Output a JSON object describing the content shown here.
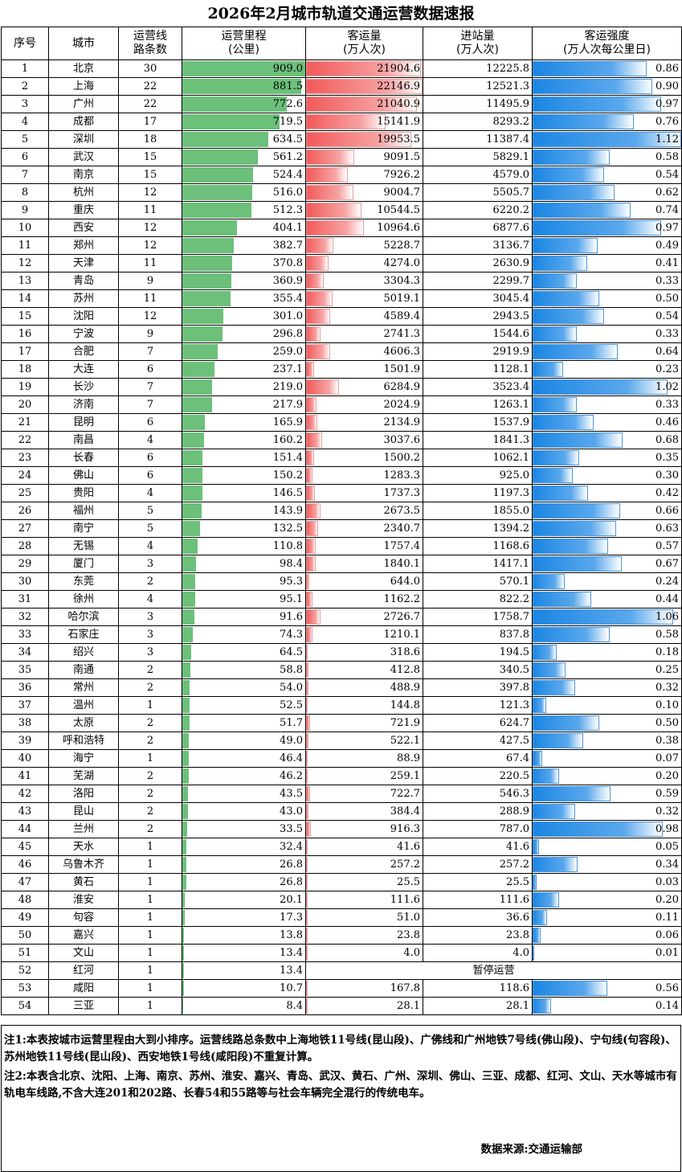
{
  "title": "2026年2月城市轨道交通运营数据速报",
  "headers": {
    "rank": [
      "序号"
    ],
    "city": [
      "城市"
    ],
    "lines": [
      "运营线",
      "路条数"
    ],
    "mileage": [
      "运营里程",
      "(公里)"
    ],
    "ridership": [
      "客运量",
      "(万人次)"
    ],
    "entries": [
      "进站量",
      "(万人次)"
    ],
    "intensity": [
      "客运强度",
      "(万人次每公里日)"
    ]
  },
  "scale": {
    "mileage_max": 909.0,
    "ridership_max": 22146.9,
    "intensity_max": 1.12
  },
  "colors": {
    "mileage_bar": "#6cc07a",
    "ridership_bar": "#f25a5a",
    "intensity_bar": "#1b86e3"
  },
  "rows": [
    {
      "rank": "1",
      "city": "北京",
      "lines": "30",
      "mileage": "909.0",
      "ridership": "21904.6",
      "entries": "12225.8",
      "intensity": "0.86"
    },
    {
      "rank": "2",
      "city": "上海",
      "lines": "22",
      "mileage": "881.5",
      "ridership": "22146.9",
      "entries": "12521.3",
      "intensity": "0.90"
    },
    {
      "rank": "3",
      "city": "广州",
      "lines": "22",
      "mileage": "772.6",
      "ridership": "21040.9",
      "entries": "11495.9",
      "intensity": "0.97"
    },
    {
      "rank": "4",
      "city": "成都",
      "lines": "17",
      "mileage": "719.5",
      "ridership": "15141.9",
      "entries": "8293.2",
      "intensity": "0.76"
    },
    {
      "rank": "5",
      "city": "深圳",
      "lines": "18",
      "mileage": "634.5",
      "ridership": "19953.5",
      "entries": "11387.4",
      "intensity": "1.12"
    },
    {
      "rank": "6",
      "city": "武汉",
      "lines": "15",
      "mileage": "561.2",
      "ridership": "9091.5",
      "entries": "5829.1",
      "intensity": "0.58"
    },
    {
      "rank": "7",
      "city": "南京",
      "lines": "15",
      "mileage": "524.4",
      "ridership": "7926.2",
      "entries": "4579.0",
      "intensity": "0.54"
    },
    {
      "rank": "8",
      "city": "杭州",
      "lines": "12",
      "mileage": "516.0",
      "ridership": "9004.7",
      "entries": "5505.7",
      "intensity": "0.62"
    },
    {
      "rank": "9",
      "city": "重庆",
      "lines": "11",
      "mileage": "512.3",
      "ridership": "10544.5",
      "entries": "6220.2",
      "intensity": "0.74"
    },
    {
      "rank": "10",
      "city": "西安",
      "lines": "12",
      "mileage": "404.1",
      "ridership": "10964.6",
      "entries": "6877.6",
      "intensity": "0.97"
    },
    {
      "rank": "11",
      "city": "郑州",
      "lines": "12",
      "mileage": "382.7",
      "ridership": "5228.7",
      "entries": "3136.7",
      "intensity": "0.49"
    },
    {
      "rank": "12",
      "city": "天津",
      "lines": "11",
      "mileage": "370.8",
      "ridership": "4274.0",
      "entries": "2630.9",
      "intensity": "0.41"
    },
    {
      "rank": "13",
      "city": "青岛",
      "lines": "9",
      "mileage": "360.9",
      "ridership": "3304.3",
      "entries": "2299.7",
      "intensity": "0.33"
    },
    {
      "rank": "14",
      "city": "苏州",
      "lines": "11",
      "mileage": "355.4",
      "ridership": "5019.1",
      "entries": "3045.4",
      "intensity": "0.50"
    },
    {
      "rank": "15",
      "city": "沈阳",
      "lines": "12",
      "mileage": "301.0",
      "ridership": "4589.4",
      "entries": "2943.5",
      "intensity": "0.54"
    },
    {
      "rank": "16",
      "city": "宁波",
      "lines": "9",
      "mileage": "296.8",
      "ridership": "2741.3",
      "entries": "1544.6",
      "intensity": "0.33"
    },
    {
      "rank": "17",
      "city": "合肥",
      "lines": "7",
      "mileage": "259.0",
      "ridership": "4606.3",
      "entries": "2919.9",
      "intensity": "0.64"
    },
    {
      "rank": "18",
      "city": "大连",
      "lines": "6",
      "mileage": "237.1",
      "ridership": "1501.9",
      "entries": "1128.1",
      "intensity": "0.23"
    },
    {
      "rank": "19",
      "city": "长沙",
      "lines": "7",
      "mileage": "219.0",
      "ridership": "6284.9",
      "entries": "3523.4",
      "intensity": "1.02"
    },
    {
      "rank": "20",
      "city": "济南",
      "lines": "7",
      "mileage": "217.9",
      "ridership": "2024.9",
      "entries": "1263.1",
      "intensity": "0.33"
    },
    {
      "rank": "21",
      "city": "昆明",
      "lines": "6",
      "mileage": "165.9",
      "ridership": "2134.9",
      "entries": "1537.9",
      "intensity": "0.46"
    },
    {
      "rank": "22",
      "city": "南昌",
      "lines": "4",
      "mileage": "160.2",
      "ridership": "3037.6",
      "entries": "1841.3",
      "intensity": "0.68"
    },
    {
      "rank": "23",
      "city": "长春",
      "lines": "6",
      "mileage": "151.4",
      "ridership": "1500.2",
      "entries": "1062.1",
      "intensity": "0.35"
    },
    {
      "rank": "24",
      "city": "佛山",
      "lines": "6",
      "mileage": "150.2",
      "ridership": "1283.3",
      "entries": "925.0",
      "intensity": "0.30"
    },
    {
      "rank": "25",
      "city": "贵阳",
      "lines": "4",
      "mileage": "146.5",
      "ridership": "1737.3",
      "entries": "1197.3",
      "intensity": "0.42"
    },
    {
      "rank": "26",
      "city": "福州",
      "lines": "5",
      "mileage": "143.9",
      "ridership": "2673.5",
      "entries": "1855.0",
      "intensity": "0.66"
    },
    {
      "rank": "27",
      "city": "南宁",
      "lines": "5",
      "mileage": "132.5",
      "ridership": "2340.7",
      "entries": "1394.2",
      "intensity": "0.63"
    },
    {
      "rank": "28",
      "city": "无锡",
      "lines": "4",
      "mileage": "110.8",
      "ridership": "1757.4",
      "entries": "1168.6",
      "intensity": "0.57"
    },
    {
      "rank": "29",
      "city": "厦门",
      "lines": "3",
      "mileage": "98.4",
      "ridership": "1840.1",
      "entries": "1417.1",
      "intensity": "0.67"
    },
    {
      "rank": "30",
      "city": "东莞",
      "lines": "2",
      "mileage": "95.3",
      "ridership": "644.0",
      "entries": "570.1",
      "intensity": "0.24"
    },
    {
      "rank": "31",
      "city": "徐州",
      "lines": "4",
      "mileage": "95.1",
      "ridership": "1162.2",
      "entries": "822.2",
      "intensity": "0.44"
    },
    {
      "rank": "32",
      "city": "哈尔滨",
      "lines": "3",
      "mileage": "91.6",
      "ridership": "2726.7",
      "entries": "1758.7",
      "intensity": "1.06"
    },
    {
      "rank": "33",
      "city": "石家庄",
      "lines": "3",
      "mileage": "74.3",
      "ridership": "1210.1",
      "entries": "837.8",
      "intensity": "0.58"
    },
    {
      "rank": "34",
      "city": "绍兴",
      "lines": "3",
      "mileage": "64.5",
      "ridership": "318.6",
      "entries": "194.5",
      "intensity": "0.18"
    },
    {
      "rank": "35",
      "city": "南通",
      "lines": "2",
      "mileage": "58.8",
      "ridership": "412.8",
      "entries": "340.5",
      "intensity": "0.25"
    },
    {
      "rank": "36",
      "city": "常州",
      "lines": "2",
      "mileage": "54.0",
      "ridership": "488.9",
      "entries": "397.8",
      "intensity": "0.32"
    },
    {
      "rank": "37",
      "city": "温州",
      "lines": "1",
      "mileage": "52.5",
      "ridership": "144.8",
      "entries": "121.3",
      "intensity": "0.10"
    },
    {
      "rank": "38",
      "city": "太原",
      "lines": "2",
      "mileage": "51.7",
      "ridership": "721.9",
      "entries": "624.7",
      "intensity": "0.50"
    },
    {
      "rank": "39",
      "city": "呼和浩特",
      "lines": "2",
      "mileage": "49.0",
      "ridership": "522.1",
      "entries": "427.5",
      "intensity": "0.38"
    },
    {
      "rank": "40",
      "city": "海宁",
      "lines": "1",
      "mileage": "46.4",
      "ridership": "88.9",
      "entries": "67.4",
      "intensity": "0.07"
    },
    {
      "rank": "41",
      "city": "芜湖",
      "lines": "2",
      "mileage": "46.2",
      "ridership": "259.1",
      "entries": "220.5",
      "intensity": "0.20"
    },
    {
      "rank": "42",
      "city": "洛阳",
      "lines": "2",
      "mileage": "43.5",
      "ridership": "722.7",
      "entries": "546.3",
      "intensity": "0.59"
    },
    {
      "rank": "43",
      "city": "昆山",
      "lines": "2",
      "mileage": "43.0",
      "ridership": "384.4",
      "entries": "288.9",
      "intensity": "0.32"
    },
    {
      "rank": "44",
      "city": "兰州",
      "lines": "2",
      "mileage": "33.5",
      "ridership": "916.3",
      "entries": "787.0",
      "intensity": "0.98"
    },
    {
      "rank": "45",
      "city": "天水",
      "lines": "1",
      "mileage": "32.4",
      "ridership": "41.6",
      "entries": "41.6",
      "intensity": "0.05"
    },
    {
      "rank": "46",
      "city": "乌鲁木齐",
      "lines": "1",
      "mileage": "26.8",
      "ridership": "257.2",
      "entries": "257.2",
      "intensity": "0.34"
    },
    {
      "rank": "47",
      "city": "黄石",
      "lines": "1",
      "mileage": "26.8",
      "ridership": "25.5",
      "entries": "25.5",
      "intensity": "0.03"
    },
    {
      "rank": "48",
      "city": "淮安",
      "lines": "1",
      "mileage": "20.1",
      "ridership": "111.6",
      "entries": "111.6",
      "intensity": "0.20"
    },
    {
      "rank": "49",
      "city": "句容",
      "lines": "1",
      "mileage": "17.3",
      "ridership": "51.0",
      "entries": "36.6",
      "intensity": "0.11"
    },
    {
      "rank": "50",
      "city": "嘉兴",
      "lines": "1",
      "mileage": "13.8",
      "ridership": "23.8",
      "entries": "23.8",
      "intensity": "0.06"
    },
    {
      "rank": "51",
      "city": "文山",
      "lines": "1",
      "mileage": "13.4",
      "ridership": "4.0",
      "entries": "4.0",
      "intensity": "0.01"
    },
    {
      "rank": "52",
      "city": "红河",
      "lines": "1",
      "mileage": "13.4",
      "suspended": "暂停运营"
    },
    {
      "rank": "53",
      "city": "咸阳",
      "lines": "1",
      "mileage": "10.7",
      "ridership": "167.8",
      "entries": "118.6",
      "intensity": "0.56"
    },
    {
      "rank": "54",
      "city": "三亚",
      "lines": "1",
      "mileage": "8.4",
      "ridership": "28.1",
      "entries": "28.1",
      "intensity": "0.14"
    }
  ],
  "notes": {
    "note1": "注1:本表按城市运营里程由大到小排序。运营线路总条数中上海地铁11号线(昆山段)、广佛线和广州地铁7号线(佛山段)、宁句线(句容段)、苏州地铁11号线(昆山段)、西安地铁1号线(咸阳段)不重复计算。",
    "note2": "注2:本表含北京、沈阳、上海、南京、苏州、淮安、嘉兴、青岛、武汉、黄石、广州、深圳、佛山、三亚、成都、红河、文山、天水等城市有轨电车线路,不含大连201和202路、长春54和55路等与社会车辆完全混行的传统电车。",
    "source": "数据来源:交通运输部"
  }
}
